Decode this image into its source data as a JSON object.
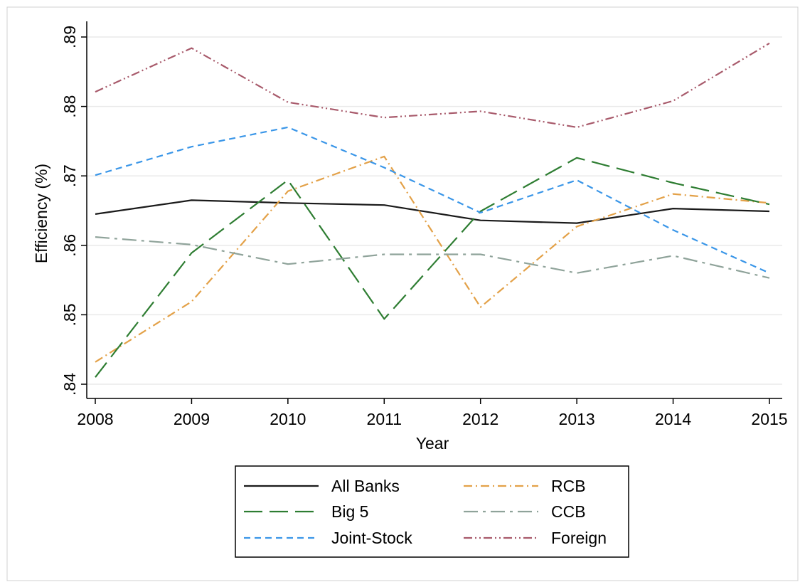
{
  "colors": {
    "background": "#ffffff",
    "plot_background": "#ffffff",
    "gridline": "#eaeaea",
    "axis": "#000000",
    "frame_border": "#d0d0d0",
    "legend_border": "#000000"
  },
  "chart_data": {
    "type": "line",
    "title": "",
    "xlabel": "Year",
    "ylabel": "Efficiency (%)",
    "x": [
      2008,
      2009,
      2010,
      2011,
      2012,
      2013,
      2014,
      2015
    ],
    "x_tick_labels": [
      "2008",
      "2009",
      "2010",
      "2011",
      "2012",
      "2013",
      "2014",
      "2015"
    ],
    "xlim": [
      2008,
      2015
    ],
    "ylim": [
      0.84,
      0.89
    ],
    "y_ticks": [
      0.84,
      0.85,
      0.86,
      0.87,
      0.88,
      0.89
    ],
    "y_tick_labels": [
      ".84",
      ".85",
      ".86",
      ".87",
      ".88",
      ".89"
    ],
    "grid": true,
    "legend_position": "bottom",
    "series": [
      {
        "name": "All Banks",
        "color": "#1a1a1a",
        "dash": "solid",
        "values": [
          0.8645,
          0.8665,
          0.8661,
          0.8658,
          0.8636,
          0.8632,
          0.8653,
          0.8649
        ]
      },
      {
        "name": "RCB",
        "color": "#e3a148",
        "dash": "dash-dot",
        "values": [
          0.8432,
          0.8519,
          0.8678,
          0.8728,
          0.8511,
          0.8627,
          0.8674,
          0.8661
        ]
      },
      {
        "name": "Big 5",
        "color": "#2e7d32",
        "dash": "long-dash",
        "values": [
          0.841,
          0.8589,
          0.8694,
          0.8494,
          0.8649,
          0.8726,
          0.869,
          0.8659
        ]
      },
      {
        "name": "CCB",
        "color": "#8fa39a",
        "dash": "long-dash-dot",
        "values": [
          0.8612,
          0.8601,
          0.8573,
          0.8587,
          0.8587,
          0.856,
          0.8585,
          0.8553
        ]
      },
      {
        "name": "Joint-Stock",
        "color": "#3a96e8",
        "dash": "short-dash",
        "values": [
          0.8701,
          0.8742,
          0.877,
          0.8712,
          0.8647,
          0.8694,
          0.8622,
          0.856
        ]
      },
      {
        "name": "Foreign",
        "color": "#a85a6b",
        "dash": "dash-dot-dot",
        "values": [
          0.8821,
          0.8884,
          0.8806,
          0.8784,
          0.8793,
          0.877,
          0.8808,
          0.8891
        ]
      }
    ]
  }
}
